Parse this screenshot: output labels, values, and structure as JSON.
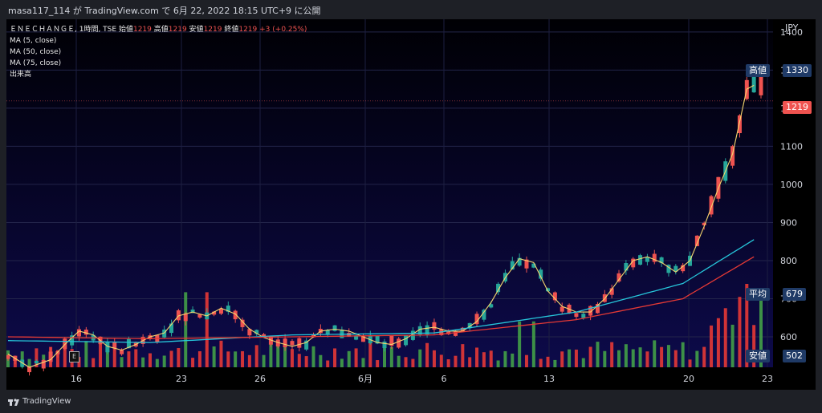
{
  "header": {
    "publisher_line": "masa117_114 が TradingView.com で 6月 22, 2022 18:15 UTC+9 に公開"
  },
  "legend": {
    "symbol": "ＥＮＥＣＨＡＮＧＥ, 1時間, TSE",
    "open_label": "始値",
    "open": "1219",
    "high_label": "高値",
    "high": "1219",
    "low_label": "安値",
    "low": "1219",
    "close_label": "終値",
    "close": "1219",
    "change": "+3 (+0.25%)",
    "ma1": "MA (5, close)",
    "ma2": "MA (50, close)",
    "ma3": "MA (75, close)",
    "volume": "出来高"
  },
  "price_tags": {
    "currency": "JPY",
    "high_label": "高値",
    "high_value": "1330",
    "last_value": "1219",
    "avg_label": "平均",
    "avg_value": "679",
    "low_label": "安値",
    "low_value": "502"
  },
  "event_marker": "E",
  "footer": {
    "brand": "TradingView"
  },
  "colors": {
    "up": "#26a69a",
    "down": "#ef5350",
    "ma5": "#f5d76e",
    "ma50": "#26c6da",
    "ma75": "#e53935",
    "vol_up": "#43a047",
    "vol_down": "#e53935"
  },
  "chart_data": {
    "type": "candlestick",
    "y_axis": {
      "ticks": [
        600,
        700,
        800,
        900,
        1000,
        1100,
        1200,
        1300,
        1400
      ],
      "ylim": [
        520,
        1425
      ]
    },
    "x_axis": {
      "ticks": [
        "16",
        "23",
        "26",
        "6月",
        "6",
        "13",
        "20",
        "23"
      ]
    },
    "series": [
      {
        "name": "MA (5, close)",
        "approx_values": [
          [
            0,
            555
          ],
          [
            3,
            520
          ],
          [
            6,
            540
          ],
          [
            8,
            580
          ],
          [
            10,
            615
          ],
          [
            12,
            605
          ],
          [
            14,
            575
          ],
          [
            16,
            565
          ],
          [
            18,
            580
          ],
          [
            20,
            600
          ],
          [
            22,
            610
          ],
          [
            24,
            655
          ],
          [
            26,
            665
          ],
          [
            28,
            655
          ],
          [
            30,
            675
          ],
          [
            32,
            660
          ],
          [
            34,
            620
          ],
          [
            36,
            598
          ],
          [
            38,
            585
          ],
          [
            40,
            575
          ],
          [
            42,
            585
          ],
          [
            44,
            615
          ],
          [
            46,
            620
          ],
          [
            48,
            615
          ],
          [
            50,
            600
          ],
          [
            52,
            585
          ],
          [
            54,
            580
          ],
          [
            56,
            595
          ],
          [
            58,
            620
          ],
          [
            60,
            625
          ],
          [
            62,
            615
          ],
          [
            64,
            615
          ],
          [
            66,
            640
          ],
          [
            68,
            690
          ],
          [
            70,
            755
          ],
          [
            72,
            805
          ],
          [
            74,
            795
          ],
          [
            76,
            720
          ],
          [
            78,
            680
          ],
          [
            80,
            665
          ],
          [
            82,
            665
          ],
          [
            84,
            700
          ],
          [
            86,
            750
          ],
          [
            88,
            800
          ],
          [
            90,
            810
          ],
          [
            92,
            795
          ],
          [
            94,
            770
          ],
          [
            96,
            800
          ],
          [
            98,
            890
          ],
          [
            100,
            990
          ],
          [
            102,
            1080
          ],
          [
            104,
            1250
          ],
          [
            105,
            1260
          ]
        ]
      },
      {
        "name": "MA (50, close)",
        "approx_values": [
          [
            0,
            590
          ],
          [
            20,
            585
          ],
          [
            40,
            605
          ],
          [
            60,
            610
          ],
          [
            80,
            665
          ],
          [
            95,
            740
          ],
          [
            105,
            855
          ]
        ]
      },
      {
        "name": "MA (75, close)",
        "approx_values": [
          [
            0,
            600
          ],
          [
            20,
            595
          ],
          [
            40,
            600
          ],
          [
            60,
            605
          ],
          [
            80,
            645
          ],
          [
            95,
            700
          ],
          [
            105,
            810
          ]
        ]
      }
    ],
    "note": "approx_values are [bar_index, price] estimates read from the chart"
  }
}
